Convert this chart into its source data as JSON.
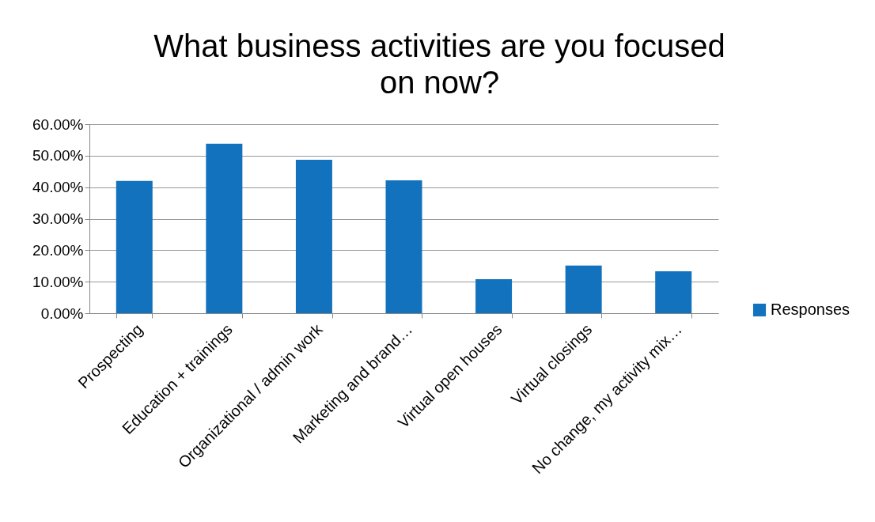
{
  "chart_data": {
    "type": "bar",
    "title": "What business activities are you focused on now?",
    "categories": [
      "Prospecting",
      "Education + trainings",
      "Organizational / admin work",
      "Marketing and brand…",
      "Virtual open houses",
      "Virtual closings",
      "No change, my activity mix…"
    ],
    "series": [
      {
        "name": "Responses",
        "color": "#1372be",
        "values": [
          42.0,
          53.8,
          48.7,
          42.2,
          10.8,
          15.1,
          13.3
        ]
      }
    ],
    "ylim": [
      0,
      60
    ],
    "yticks": [
      {
        "value": 0,
        "label": "0.00%"
      },
      {
        "value": 10,
        "label": "10.00%"
      },
      {
        "value": 20,
        "label": "20.00%"
      },
      {
        "value": 30,
        "label": "30.00%"
      },
      {
        "value": 40,
        "label": "40.00%"
      },
      {
        "value": 50,
        "label": "50.00%"
      },
      {
        "value": 60,
        "label": "60.00%"
      }
    ],
    "grid": "y",
    "legend": "right"
  }
}
